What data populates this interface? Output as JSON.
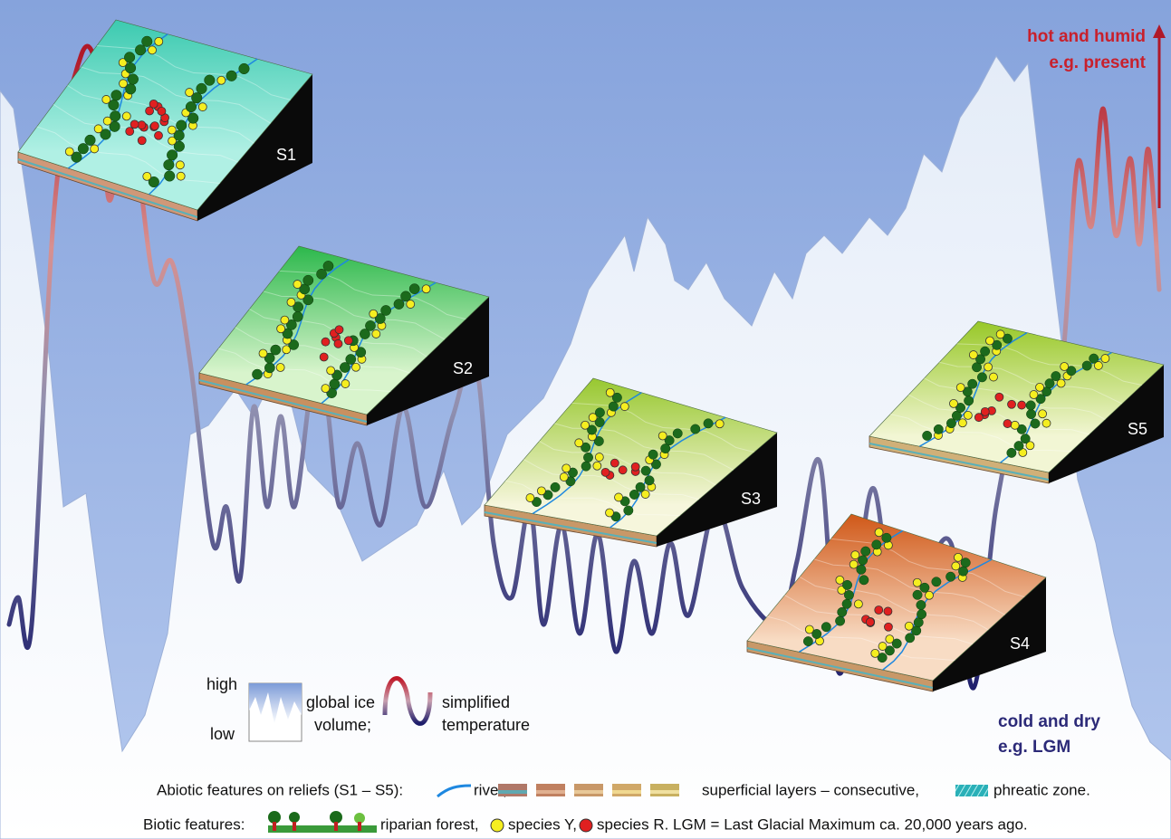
{
  "annotations": {
    "hot": [
      "hot and humid",
      "e.g. present"
    ],
    "cold": [
      "cold and dry",
      "e.g. LGM"
    ]
  },
  "legend": {
    "ice_high": "high",
    "ice_low": "low",
    "ice_label": [
      "global ice",
      "volume;"
    ],
    "temp_label": [
      "simplified",
      "temperature"
    ]
  },
  "reliefs": [
    {
      "label": "S1"
    },
    {
      "label": "S2"
    },
    {
      "label": "S3"
    },
    {
      "label": "S4"
    },
    {
      "label": "S5"
    }
  ],
  "footer": {
    "abiotic": {
      "title": "Abiotic features on reliefs (S1 – S5):",
      "river": "river,",
      "layers": "superficial layers – consecutive,",
      "phreatic": "phreatic zone."
    },
    "biotic": {
      "title": "Biotic features:",
      "forest": "riparian forest,",
      "species_y": "species Y,",
      "species_r": "species R.",
      "note": "LGM = Last Glacial Maximum ca. 20,000 years ago."
    }
  }
}
